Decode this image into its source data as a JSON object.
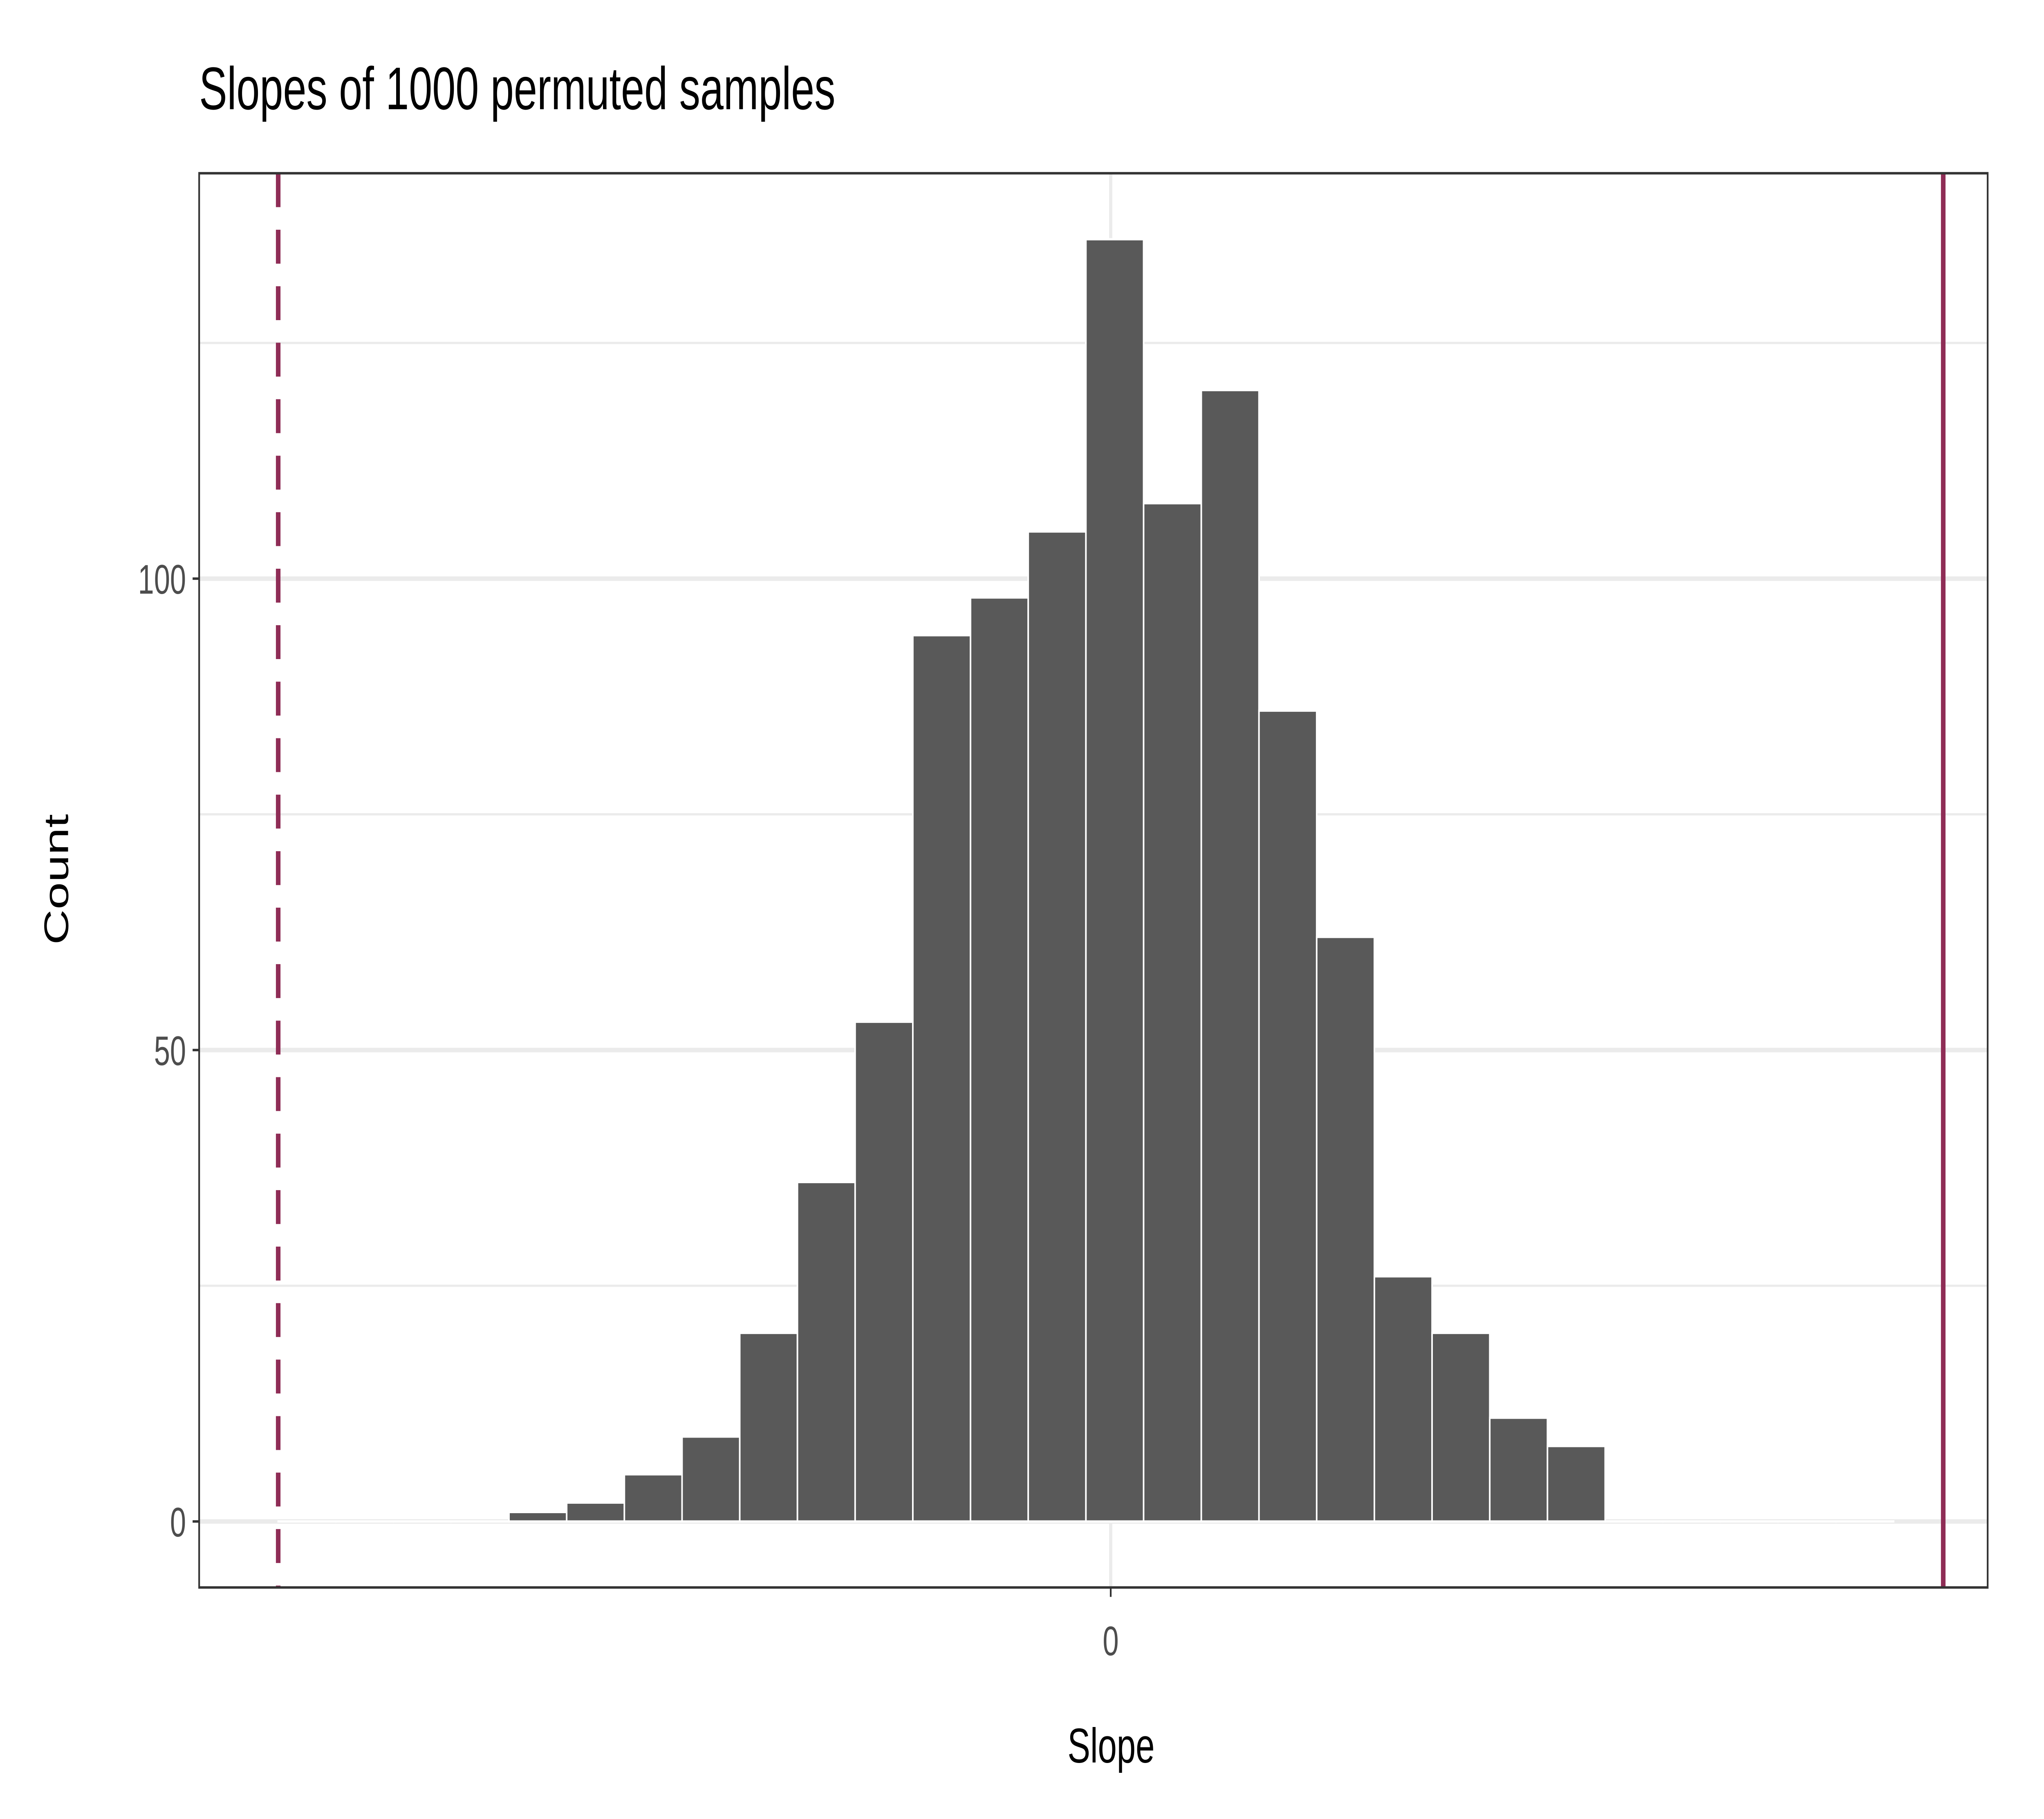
{
  "chart_data": {
    "type": "bar",
    "subtype": "histogram",
    "title": "Slopes of 1000 permuted samples",
    "xlabel": "Slope",
    "ylabel": "Count",
    "x_units_note": "x values in bin-width units (only the 0 tick is labelled)",
    "bin_width": 1,
    "bin_start": -14.43,
    "counts": [
      0,
      0,
      0,
      0,
      1,
      2,
      5,
      9,
      20,
      36,
      53,
      94,
      98,
      105,
      136,
      108,
      120,
      86,
      62,
      26,
      20,
      11,
      8,
      0,
      0,
      0,
      0,
      0
    ],
    "xlim": [
      -15.8,
      15.2
    ],
    "ylim": [
      -7,
      143
    ],
    "x_ticks": [
      {
        "value": 0,
        "label": "0"
      }
    ],
    "y_ticks": [
      {
        "value": 0,
        "label": "0"
      },
      {
        "value": 50,
        "label": "50"
      },
      {
        "value": 100,
        "label": "100"
      }
    ],
    "y_minor_grid": [
      25,
      75,
      125
    ],
    "grid": true,
    "reference_lines": [
      {
        "name": "observed-slope",
        "value": 14.43,
        "style": "solid"
      },
      {
        "name": "negative-observed-slope",
        "value": -14.43,
        "style": "dashed"
      }
    ],
    "colors": {
      "bar": "#595959",
      "bar_outline": "#ffffff",
      "reference": "#8F2D56",
      "grid": "#ebebeb",
      "panel_border": "#333333"
    }
  }
}
